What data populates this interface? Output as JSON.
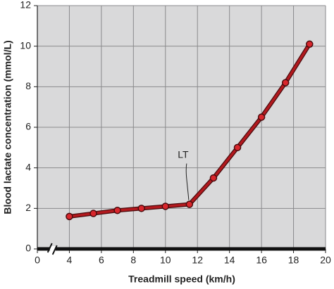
{
  "chart_data": {
    "type": "line",
    "x_label": "Treadmill speed (km/h)",
    "y_label": "Blood lactate concentration (mmol/L)",
    "x": [
      4,
      5.5,
      7,
      8.5,
      10,
      11.5,
      13,
      14.5,
      16,
      17.5,
      19
    ],
    "series": [
      {
        "name": null,
        "color": "#b3191e",
        "values": [
          1.6,
          1.75,
          1.9,
          2.0,
          2.1,
          2.2,
          3.5,
          5.0,
          6.5,
          8.2,
          10.1
        ]
      }
    ],
    "annotation": {
      "text": "LT",
      "x": 11.5,
      "y": 2.2
    },
    "xlim": [
      0,
      20
    ],
    "xticks": [
      0,
      4,
      6,
      8,
      10,
      12,
      14,
      16,
      18,
      20
    ],
    "x_axis_break": true,
    "ylim": [
      0,
      12
    ],
    "yticks": [
      0,
      2,
      4,
      6,
      8,
      10,
      12
    ],
    "grid": true
  }
}
